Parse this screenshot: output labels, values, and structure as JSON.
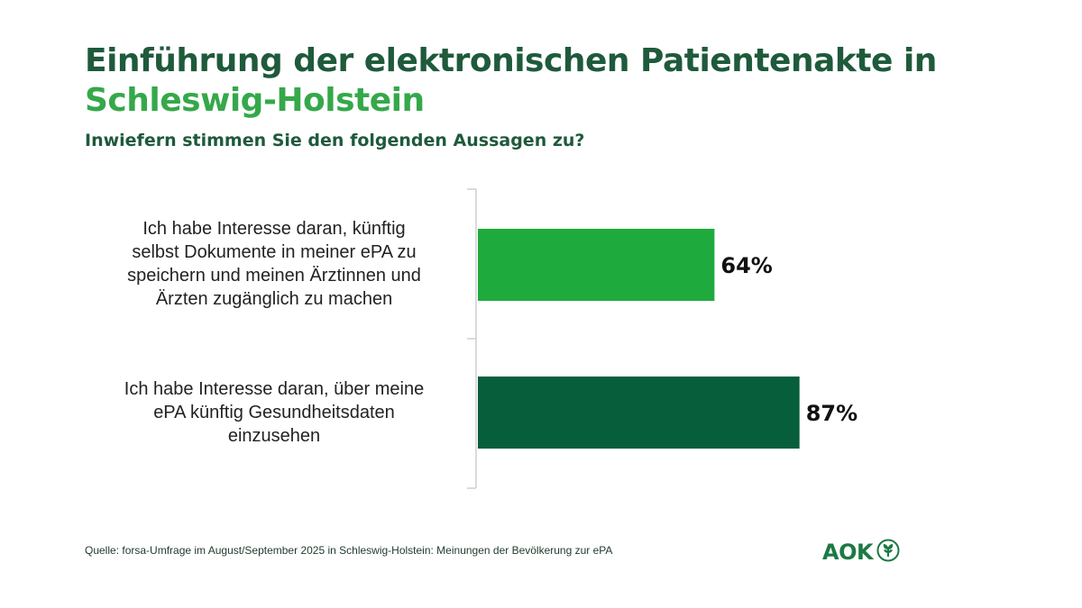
{
  "title": {
    "line1": "Einführung der elektronischen Patientenakte in",
    "line2": "Schleswig-Holstein"
  },
  "subtitle": "Inwiefern stimmen Sie den folgenden Aussagen zu?",
  "chart_data": {
    "type": "bar",
    "orientation": "horizontal",
    "categories": [
      "Ich habe Interesse daran, künftig selbst Dokumente in meiner ePA zu speichern und meinen Ärztinnen und Ärzten zugänglich zu machen",
      "Ich habe Interesse daran, über meine ePA künftig Gesundheitsdaten einzusehen"
    ],
    "category_lines": [
      [
        "Ich habe Interesse daran, künftig",
        "selbst Dokumente in meiner ePA zu",
        "speichern und meinen Ärztinnen und",
        "Ärzten zugänglich zu machen"
      ],
      [
        "Ich habe Interesse daran, über meine",
        "ePA künftig Gesundheitsdaten",
        "einzusehen"
      ]
    ],
    "values": [
      64,
      87
    ],
    "value_labels": [
      "64%",
      "87%"
    ],
    "bar_colors": [
      "#1faa3e",
      "#075e3a"
    ],
    "xlim": [
      0,
      100
    ],
    "unit": "%"
  },
  "source": "Quelle: forsa-Umfrage im August/September 2025 in Schleswig-Holstein: Meinungen der Bevölkerung zur ePA",
  "logo": {
    "text": "AOK",
    "icon": "aok-tree-icon",
    "color": "#1b7a44"
  },
  "colors": {
    "title_dark": "#1e5a3b",
    "title_green": "#35a84a"
  }
}
